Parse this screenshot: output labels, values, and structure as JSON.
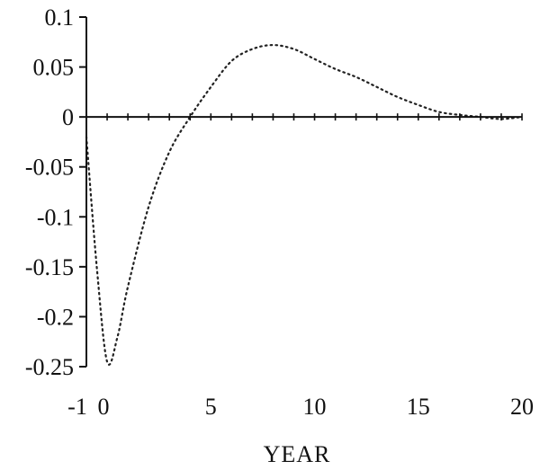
{
  "chart_data": {
    "type": "line",
    "title": "",
    "xlabel": "YEAR",
    "ylabel": "",
    "xlim": [
      -1,
      20
    ],
    "ylim": [
      -0.25,
      0.1
    ],
    "x_tick_labels": [
      "-1",
      "0",
      "5",
      "10",
      "15",
      "20"
    ],
    "y_tick_labels": [
      "0.1",
      "0.05",
      "0",
      "-0.05",
      "-0.1",
      "-0.15",
      "-0.2",
      "-0.25"
    ],
    "grid": false,
    "legend": "none",
    "series": [
      {
        "line_style": "dotted",
        "color": "#222222",
        "x": [
          -1,
          -0.5,
          0,
          0.5,
          1,
          2,
          3,
          4,
          5,
          6,
          7,
          8,
          9,
          10,
          11,
          12,
          13,
          14,
          15,
          16,
          17,
          18,
          19,
          20
        ],
        "y": [
          -0.02,
          -0.15,
          -0.245,
          -0.22,
          -0.17,
          -0.09,
          -0.035,
          0.0,
          0.03,
          0.056,
          0.068,
          0.072,
          0.068,
          0.058,
          0.048,
          0.04,
          0.03,
          0.02,
          0.012,
          0.005,
          0.002,
          0.0,
          -0.002,
          0.0
        ]
      }
    ]
  }
}
